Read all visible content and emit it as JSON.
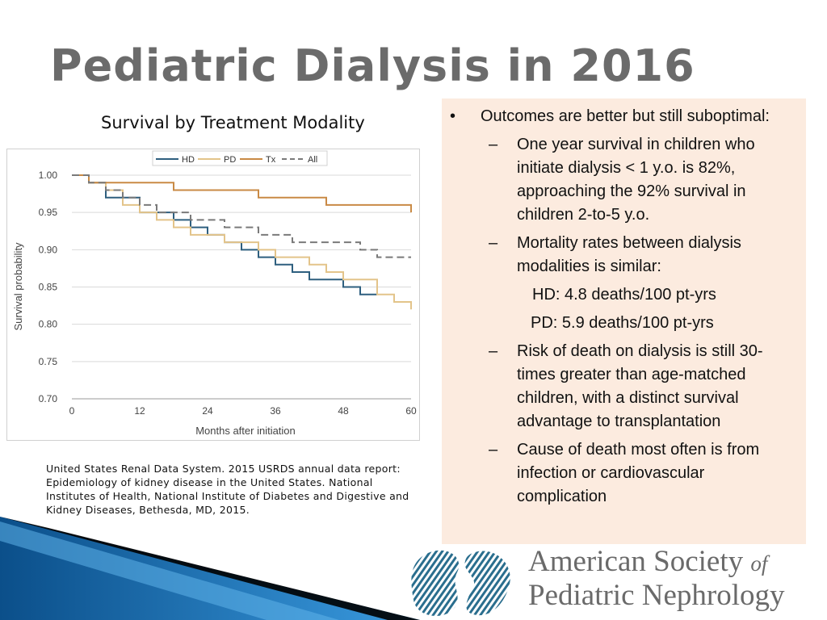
{
  "slide": {
    "title": "Pediatric Dialysis in 2016",
    "chart_caption": "Survival by Treatment Modality",
    "citation": "United States Renal Data System. 2015 USRDS annual data report: Epidemiology of kidney disease in the United States. National Institutes of Health, National Institute of Diabetes and Digestive and Kidney Diseases, Bethesda, MD, 2015."
  },
  "bullets": {
    "main_marker": "•",
    "sub_marker": "–",
    "main": "Outcomes are better but still suboptimal:",
    "sub1": "One year survival in children who initiate dialysis < 1 y.o. is 82%, approaching the 92% survival in children 2-to-5 y.o.",
    "sub2": "Mortality rates between dialysis modalities is similar:",
    "rate_hd": "HD: 4.8 deaths/100 pt-yrs",
    "rate_pd": "PD: 5.9 deaths/100 pt-yrs",
    "sub3": "Risk of death on dialysis is still 30-times greater than age-matched children, with a distinct survival advantage to transplantation",
    "sub4": "Cause of death most often is from infection or cardiovascular complication"
  },
  "logo": {
    "line1": "American Society",
    "of": "of",
    "line2": "Pediatric Nephrology"
  },
  "colors": {
    "title": "#6b6b6b",
    "panel": "#fcebdf",
    "hd": "#2e5f7f",
    "pd": "#e3c48a",
    "tx": "#c98a45",
    "all": "#7a7a7a",
    "logo": "#2a6e8e"
  },
  "chart_data": {
    "type": "line",
    "step": true,
    "xlabel": "Months after initiation",
    "ylabel": "Survival probability",
    "xlim": [
      0,
      60
    ],
    "ylim": [
      0.7,
      1.0
    ],
    "xticks": [
      0,
      12,
      24,
      36,
      48,
      60
    ],
    "yticks": [
      1.0,
      0.95,
      0.9,
      0.85,
      0.8,
      0.75,
      0.7
    ],
    "yticklabels": [
      "1.00",
      "0.95",
      "0.90",
      "0.85",
      "0.80",
      "0.75",
      "0.70"
    ],
    "legend_position": "top",
    "grid": true,
    "series": [
      {
        "name": "HD",
        "key": "hd",
        "dashed": false,
        "x": [
          0,
          3,
          6,
          9,
          12,
          15,
          18,
          21,
          24,
          27,
          30,
          33,
          36,
          39,
          42,
          45,
          48,
          51,
          54
        ],
        "y": [
          1.0,
          0.99,
          0.97,
          0.97,
          0.95,
          0.95,
          0.94,
          0.93,
          0.92,
          0.91,
          0.9,
          0.89,
          0.88,
          0.87,
          0.86,
          0.86,
          0.85,
          0.84,
          0.84
        ]
      },
      {
        "name": "PD",
        "key": "pd",
        "dashed": false,
        "x": [
          0,
          3,
          6,
          9,
          12,
          15,
          18,
          21,
          24,
          27,
          30,
          33,
          36,
          39,
          42,
          45,
          48,
          51,
          54,
          57,
          60
        ],
        "y": [
          1.0,
          0.99,
          0.98,
          0.96,
          0.95,
          0.94,
          0.93,
          0.92,
          0.92,
          0.91,
          0.91,
          0.9,
          0.89,
          0.89,
          0.88,
          0.87,
          0.86,
          0.86,
          0.84,
          0.83,
          0.82
        ]
      },
      {
        "name": "Tx",
        "key": "tx",
        "dashed": false,
        "x": [
          0,
          3,
          6,
          18,
          33,
          45,
          60
        ],
        "y": [
          1.0,
          0.99,
          0.99,
          0.98,
          0.97,
          0.96,
          0.95
        ]
      },
      {
        "name": "All",
        "key": "all",
        "dashed": true,
        "x": [
          0,
          3,
          6,
          9,
          12,
          15,
          21,
          27,
          33,
          39,
          45,
          51,
          54,
          60
        ],
        "y": [
          1.0,
          0.99,
          0.98,
          0.97,
          0.96,
          0.95,
          0.94,
          0.93,
          0.92,
          0.91,
          0.91,
          0.9,
          0.89,
          0.89
        ]
      }
    ]
  }
}
